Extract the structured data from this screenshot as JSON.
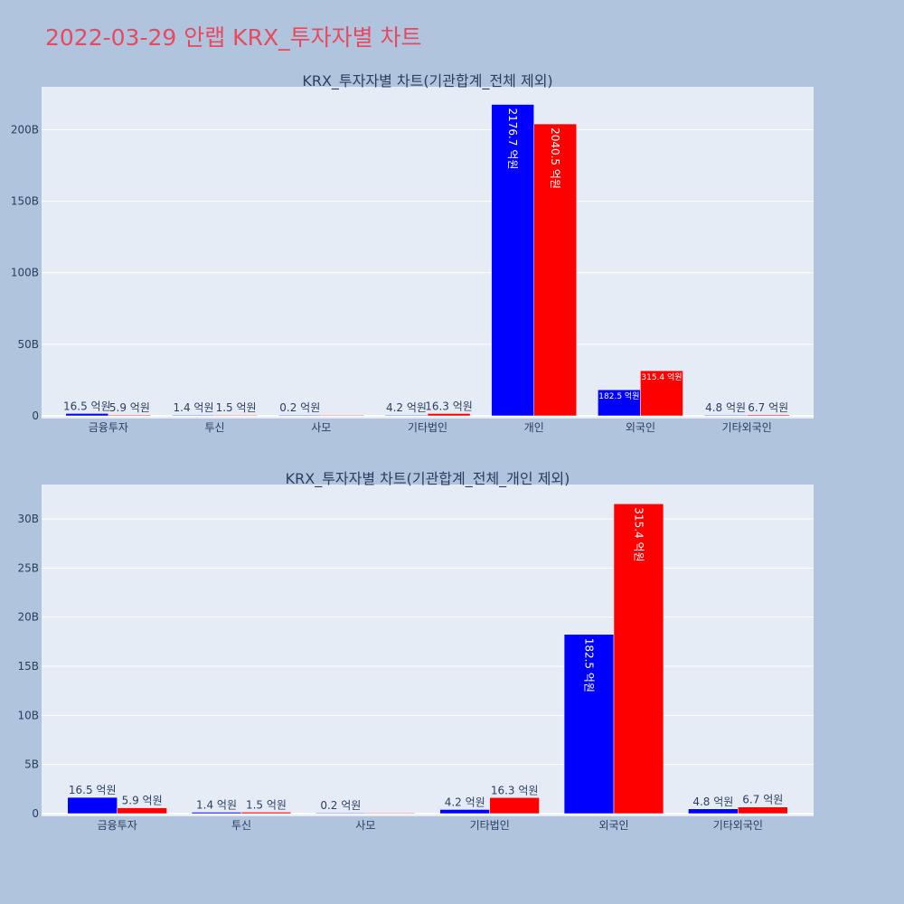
{
  "title": "2022-03-29 안랩 KRX_투자자별 차트",
  "colors": {
    "series_a": "#0000ff",
    "series_b": "#ff0000",
    "plot_bg": "#e5ecf6",
    "page_bg": "#b0c4de",
    "title": "#e8495f"
  },
  "chart_data": [
    {
      "type": "bar",
      "title": "KRX_투자자별 차트(기관합계_전체 제외)",
      "categories": [
        "금융투자",
        "투신",
        "사모",
        "기타법인",
        "개인",
        "외국인",
        "기타외국인"
      ],
      "ylim": [
        0,
        230
      ],
      "yticks": [
        0,
        50,
        100,
        150,
        200
      ],
      "ytick_labels": [
        "0",
        "50B",
        "100B",
        "150B",
        "200B"
      ],
      "grid": true,
      "legend": "none",
      "series": [
        {
          "color": "#0000ff",
          "values": [
            1.65,
            0.14,
            0.02,
            0.42,
            217.67,
            18.25,
            0.48
          ],
          "labels": [
            "16.5 억원",
            "1.4 억원",
            "0.2 억원",
            "4.2 억원",
            "2176.7 억원",
            "182.5 억원",
            "4.8 억원"
          ]
        },
        {
          "color": "#ff0000",
          "values": [
            0.59,
            0.15,
            0,
            1.63,
            204.05,
            31.54,
            0.67
          ],
          "labels": [
            "5.9 억원",
            "1.5 억원",
            "",
            "16.3 억원",
            "2040.5 억원",
            "315.4 억원",
            "6.7 억원"
          ]
        }
      ]
    },
    {
      "type": "bar",
      "title": "KRX_투자자별 차트(기관합계_전체_개인 제외)",
      "categories": [
        "금융투자",
        "투신",
        "사모",
        "기타법인",
        "외국인",
        "기타외국인"
      ],
      "ylim": [
        0,
        33.5
      ],
      "yticks": [
        0,
        5,
        10,
        15,
        20,
        25,
        30
      ],
      "ytick_labels": [
        "0",
        "5B",
        "10B",
        "15B",
        "20B",
        "25B",
        "30B"
      ],
      "grid": true,
      "legend": "none",
      "series": [
        {
          "color": "#0000ff",
          "values": [
            1.65,
            0.14,
            0.02,
            0.42,
            18.25,
            0.48
          ],
          "labels": [
            "16.5 억원",
            "1.4 억원",
            "0.2 억원",
            "4.2 억원",
            "182.5 억원",
            "4.8 억원"
          ]
        },
        {
          "color": "#ff0000",
          "values": [
            0.59,
            0.15,
            0,
            1.63,
            31.54,
            0.67
          ],
          "labels": [
            "5.9 억원",
            "1.5 억원",
            "",
            "16.3 억원",
            "315.4 억원",
            "6.7 억원"
          ]
        }
      ]
    }
  ]
}
